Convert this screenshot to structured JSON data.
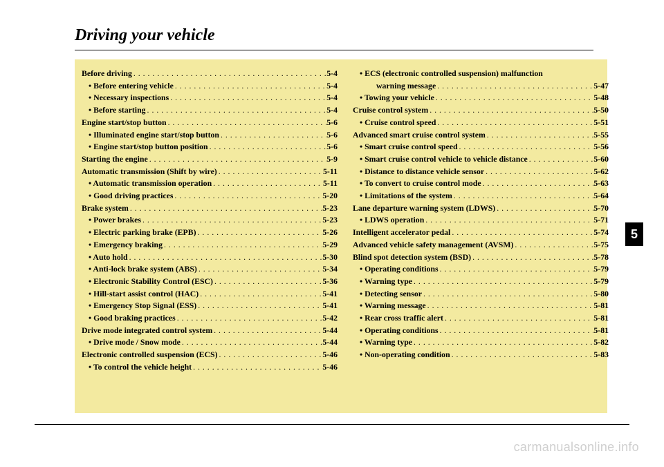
{
  "chapterNumber": "5",
  "chapterTitle": "Driving your vehicle",
  "watermark": "carmanualsonline.info",
  "leftColumn": [
    {
      "label": "Before driving",
      "page": "5-4",
      "level": "main"
    },
    {
      "label": "• Before entering vehicle",
      "page": "5-4",
      "level": "sub"
    },
    {
      "label": "• Necessary inspections ",
      "page": "5-4",
      "level": "sub"
    },
    {
      "label": "• Before starting ",
      "page": "5-4",
      "level": "sub"
    },
    {
      "label": "Engine start/stop button ",
      "page": "5-6",
      "level": "main"
    },
    {
      "label": "• Illuminated engine start/stop button",
      "page": "5-6",
      "level": "sub"
    },
    {
      "label": "• Engine start/stop button position",
      "page": "5-6",
      "level": "sub"
    },
    {
      "label": "Starting the engine",
      "page": "5-9",
      "level": "main"
    },
    {
      "label": "Automatic transmission (Shift by wire)",
      "page": "5-11",
      "level": "main"
    },
    {
      "label": "• Automatic transmission operation",
      "page": "5-11",
      "level": "sub"
    },
    {
      "label": "• Good driving practices",
      "page": "5-20",
      "level": "sub"
    },
    {
      "label": "Brake system ",
      "page": "5-23",
      "level": "main"
    },
    {
      "label": "• Power brakes ",
      "page": "5-23",
      "level": "sub"
    },
    {
      "label": "• Electric parking brake (EPB) ",
      "page": "5-26",
      "level": "sub"
    },
    {
      "label": "• Emergency braking",
      "page": "5-29",
      "level": "sub"
    },
    {
      "label": "• Auto hold ",
      "page": "5-30",
      "level": "sub"
    },
    {
      "label": "• Anti-lock brake system (ABS)",
      "page": "5-34",
      "level": "sub"
    },
    {
      "label": "• Electronic Stability Control (ESC)",
      "page": "5-36",
      "level": "sub"
    },
    {
      "label": "• Hill-start assist control (HAC)",
      "page": "5-41",
      "level": "sub"
    },
    {
      "label": "• Emergency Stop Signal (ESS) ",
      "page": "5-41",
      "level": "sub"
    },
    {
      "label": "• Good braking practices",
      "page": "5-42",
      "level": "sub"
    },
    {
      "label": "Drive mode integrated control system",
      "page": "5-44",
      "level": "main"
    },
    {
      "label": "• Drive mode / Snow mode",
      "page": "5-44",
      "level": "sub"
    },
    {
      "label": "Electronic controlled suspension (ECS)",
      "page": "5-46",
      "level": "main"
    },
    {
      "label": "• To control the vehicle height ",
      "page": "5-46",
      "level": "sub"
    }
  ],
  "rightColumn": [
    {
      "label": "• ECS (electronic controlled suspension) malfunction",
      "page": "",
      "level": "sub",
      "nopage": true
    },
    {
      "label": "warning message",
      "page": "5-47",
      "level": "sub2"
    },
    {
      "label": "• Towing your vehicle",
      "page": "5-48",
      "level": "sub"
    },
    {
      "label": "Cruise control system",
      "page": "5-50",
      "level": "main"
    },
    {
      "label": "• Cruise control speed",
      "page": "5-51",
      "level": "sub"
    },
    {
      "label": "Advanced smart cruise control system",
      "page": "5-55",
      "level": "main"
    },
    {
      "label": "• Smart cruise control speed",
      "page": "5-56",
      "level": "sub"
    },
    {
      "label": "• Smart cruise control vehicle to vehicle distance",
      "page": "5-60",
      "level": "sub"
    },
    {
      "label": "• Distance to distance vehicle sensor ",
      "page": "5-62",
      "level": "sub"
    },
    {
      "label": "• To convert to cruise control mode",
      "page": "5-63",
      "level": "sub"
    },
    {
      "label": "• Limitations of the system",
      "page": "5-64",
      "level": "sub"
    },
    {
      "label": "Lane departure warning system (LDWS)",
      "page": "5-70",
      "level": "main"
    },
    {
      "label": "• LDWS operation",
      "page": "5-71",
      "level": "sub"
    },
    {
      "label": "Intelligent accelerator pedal",
      "page": "5-74",
      "level": "main"
    },
    {
      "label": "Advanced vehicle safety management (AVSM)",
      "page": "5-75",
      "level": "main"
    },
    {
      "label": "Blind spot detection system (BSD)",
      "page": "5-78",
      "level": "main"
    },
    {
      "label": "• Operating conditions",
      "page": "5-79",
      "level": "sub"
    },
    {
      "label": "• Warning type",
      "page": "5-79",
      "level": "sub"
    },
    {
      "label": "• Detecting sensor",
      "page": "5-80",
      "level": "sub"
    },
    {
      "label": "• Warning message",
      "page": "5-81",
      "level": "sub"
    },
    {
      "label": "• Rear cross traffic alert ",
      "page": "5-81",
      "level": "sub"
    },
    {
      "label": "• Operating conditions",
      "page": "5-81",
      "level": "sub"
    },
    {
      "label": "• Warning type",
      "page": "5-82",
      "level": "sub"
    },
    {
      "label": "• Non-operating condition",
      "page": "5-83",
      "level": "sub"
    }
  ]
}
